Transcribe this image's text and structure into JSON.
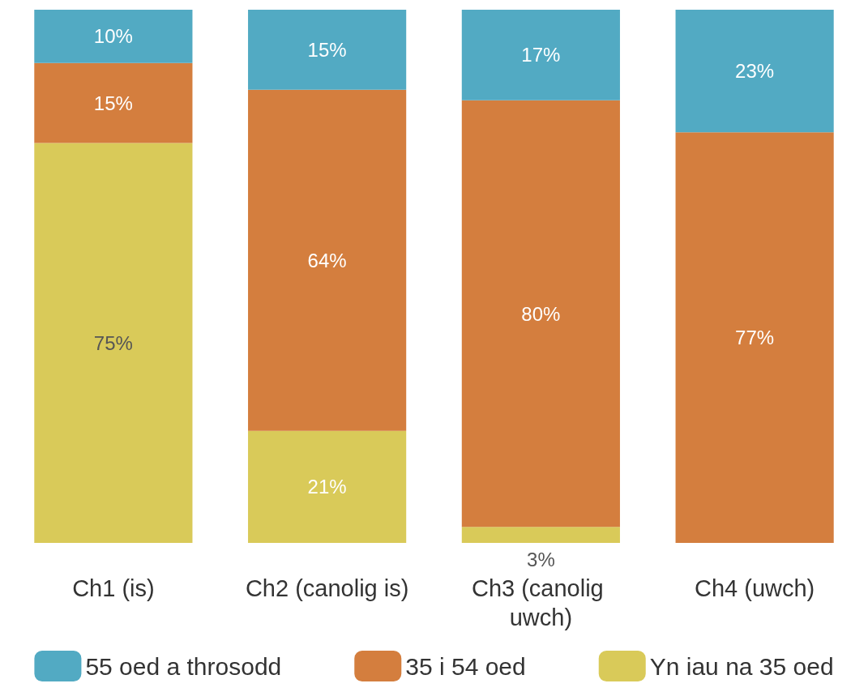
{
  "chart_data": {
    "type": "bar",
    "stacked": true,
    "legend": "bottom",
    "categories": [
      "Ch1 (is)",
      "Ch2 (canolig is)",
      "Ch3 (canolig uwch)",
      "Ch4 (uwch)"
    ],
    "series": [
      {
        "name": "Yn iau na 35 oed",
        "color": "#d9ca59",
        "values": [
          75,
          21,
          3,
          0
        ],
        "value_labels": [
          "75%",
          "21%",
          "3%",
          null
        ]
      },
      {
        "name": "35 i 54 oed",
        "color": "#d47e3e",
        "values": [
          15,
          64,
          80,
          77
        ],
        "value_labels": [
          "15%",
          "64%",
          "80%",
          "77%"
        ]
      },
      {
        "name": "55 oed a throsodd",
        "color": "#52aac3",
        "values": [
          10,
          15,
          17,
          23
        ],
        "value_labels": [
          "10%",
          "15%",
          "17%",
          "23%"
        ]
      }
    ]
  }
}
